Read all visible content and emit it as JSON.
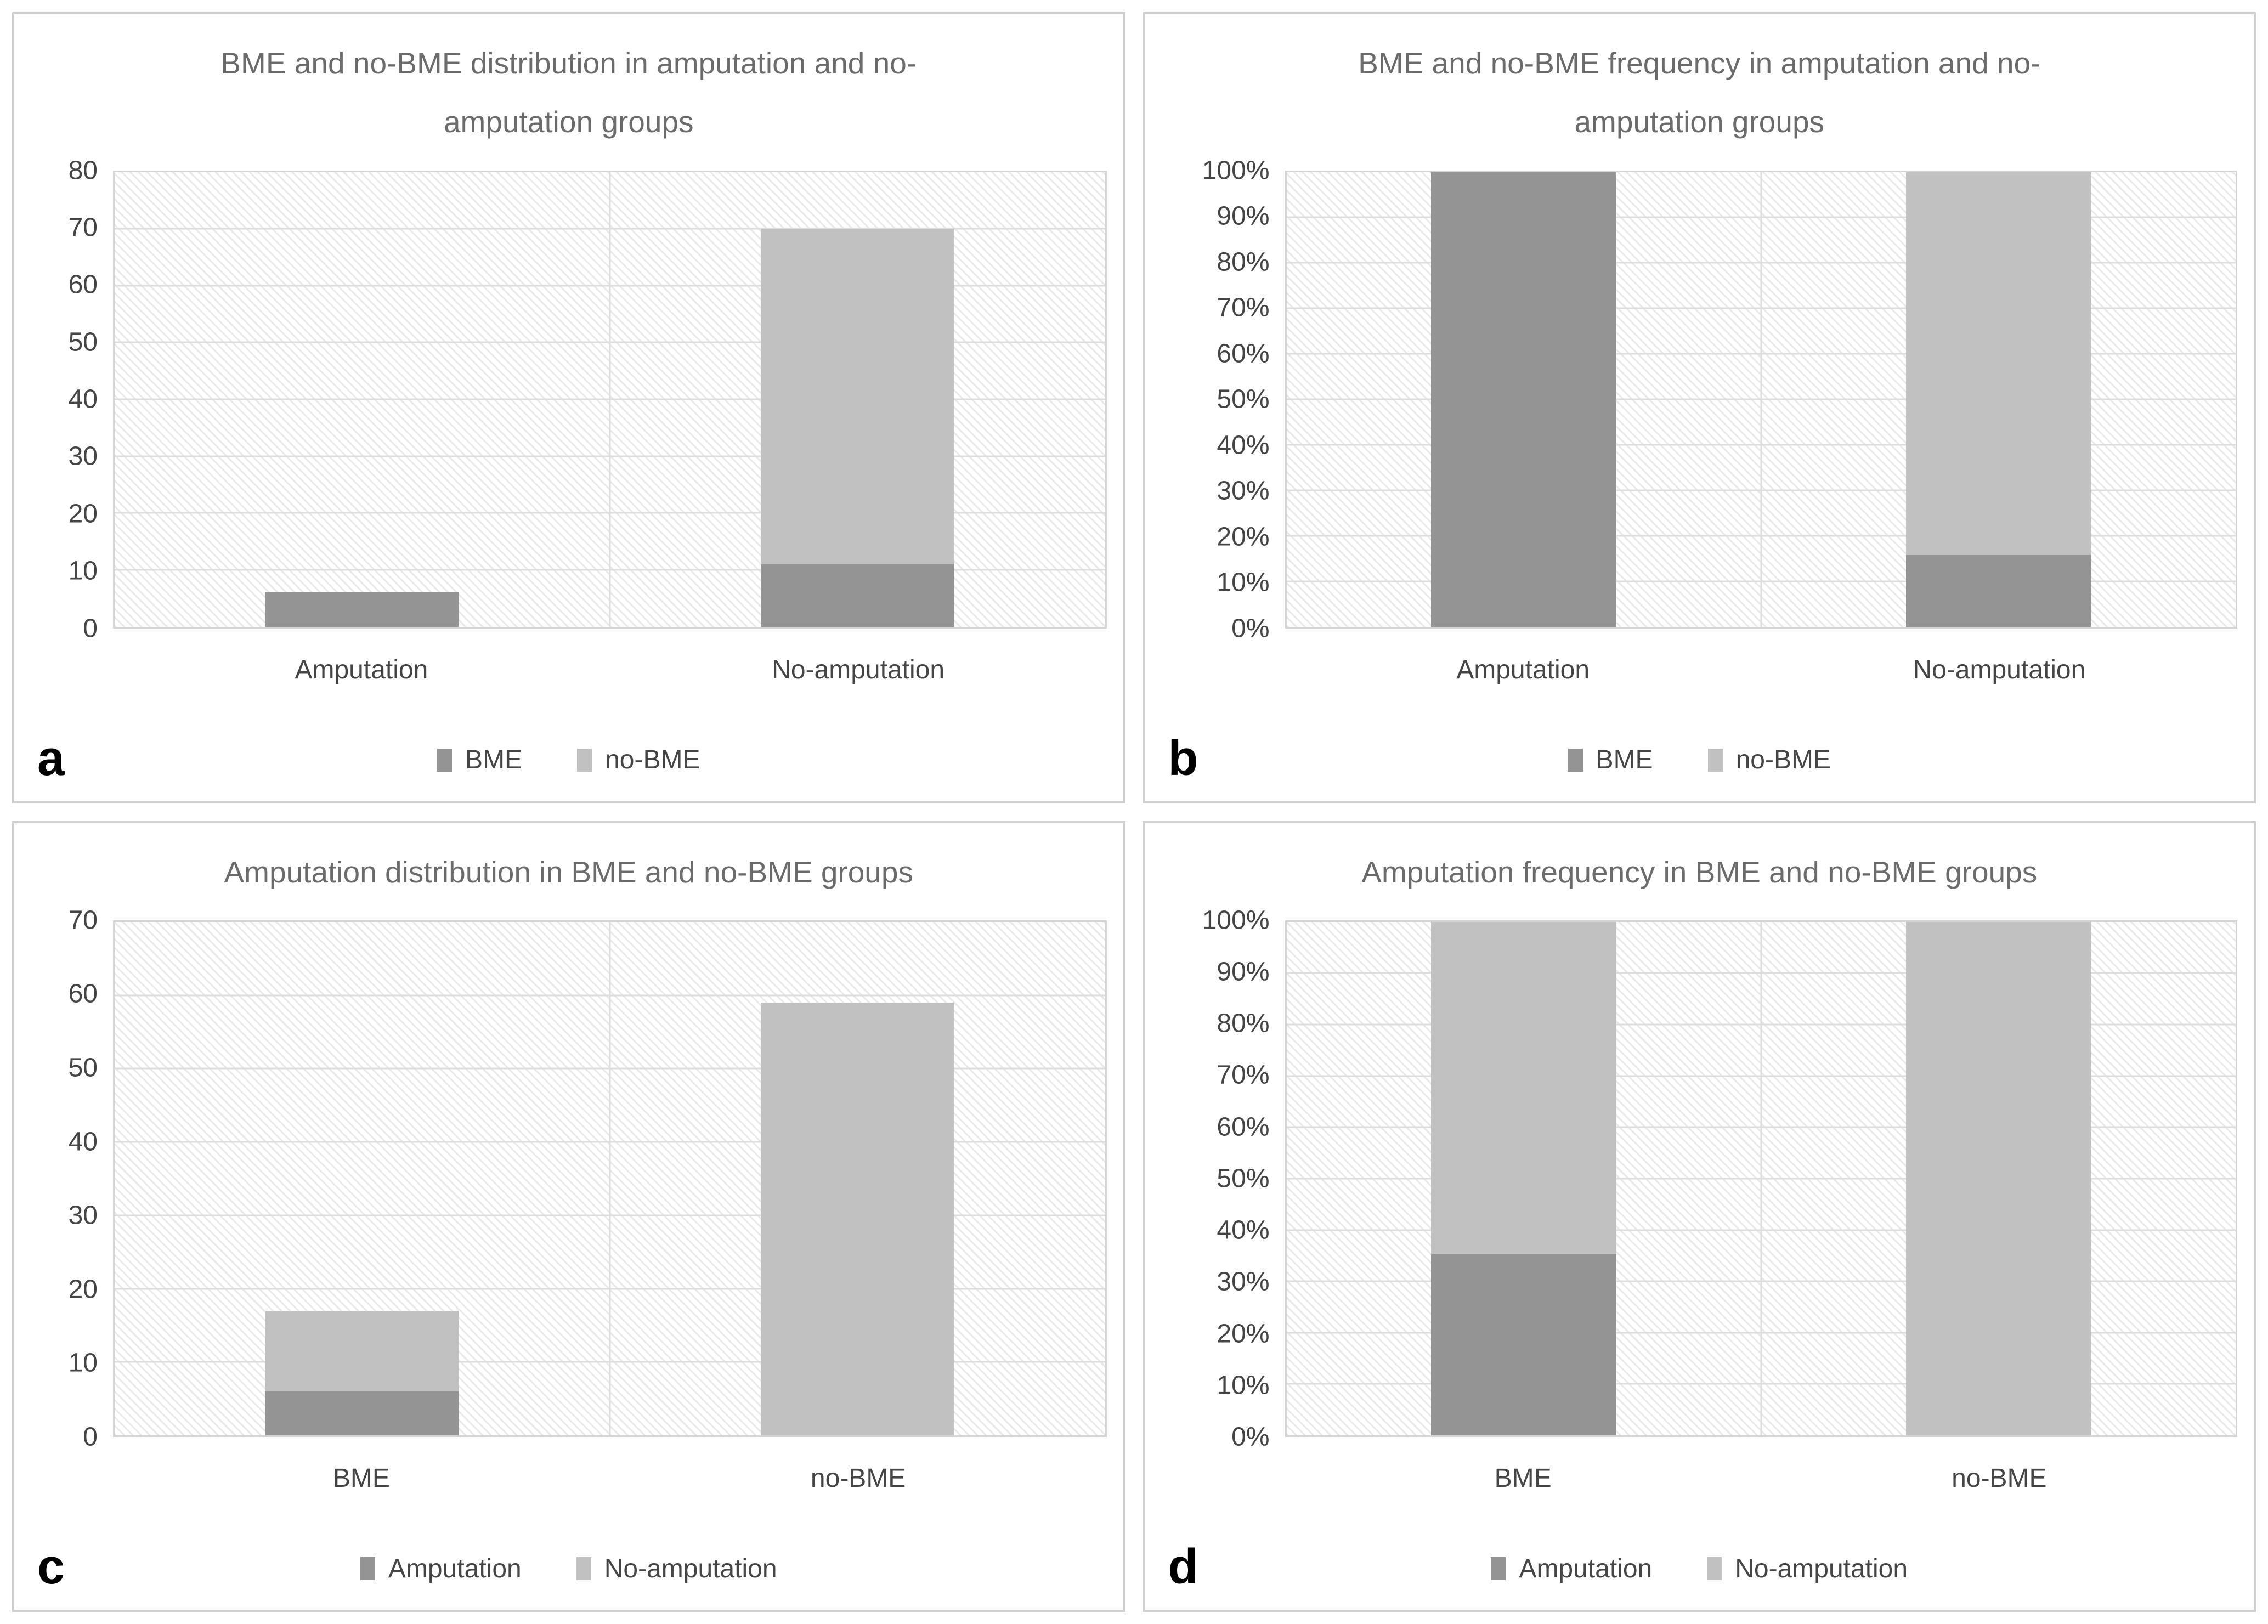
{
  "figure": {
    "background_color": "#ffffff",
    "panel_border_color": "#cfcfcf",
    "series_dark_color": "#949494",
    "series_light_color": "#c1c1c1",
    "title_color": "#6b6b6b",
    "axis_text_color": "#454545"
  },
  "chart_data": [
    {
      "panel": "a",
      "type": "bar",
      "subtype": "stacked",
      "title": "BME and no-BME distribution in amputation and no-amputation groups",
      "categories": [
        "Amputation",
        "No-amputation"
      ],
      "series": [
        {
          "name": "BME",
          "color": "#949494",
          "values": [
            6,
            11
          ]
        },
        {
          "name": "no-BME",
          "color": "#c1c1c1",
          "values": [
            0,
            59
          ]
        }
      ],
      "ylim": [
        0,
        80
      ],
      "yticks": [
        "80",
        "70",
        "60",
        "50",
        "40",
        "30",
        "20",
        "10",
        "0"
      ],
      "xlabel": "",
      "ylabel": "",
      "grid": true,
      "legend_position": "bottom"
    },
    {
      "panel": "b",
      "type": "bar",
      "subtype": "stacked-100",
      "title": "BME and no-BME frequency in amputation and no-amputation groups",
      "categories": [
        "Amputation",
        "No-amputation"
      ],
      "series": [
        {
          "name": "BME",
          "color": "#949494",
          "values": [
            100,
            15.7
          ]
        },
        {
          "name": "no-BME",
          "color": "#c1c1c1",
          "values": [
            0,
            84.3
          ]
        }
      ],
      "ylim": [
        0,
        100
      ],
      "yticks": [
        "100%",
        "90%",
        "80%",
        "70%",
        "60%",
        "50%",
        "40%",
        "30%",
        "20%",
        "10%",
        "0%"
      ],
      "xlabel": "",
      "ylabel": "",
      "grid": true,
      "legend_position": "bottom"
    },
    {
      "panel": "c",
      "type": "bar",
      "subtype": "stacked",
      "title": "Amputation distribution in BME and no-BME groups",
      "categories": [
        "BME",
        "no-BME"
      ],
      "series": [
        {
          "name": "Amputation",
          "color": "#949494",
          "values": [
            6,
            0
          ]
        },
        {
          "name": "No-amputation",
          "color": "#c1c1c1",
          "values": [
            11,
            59
          ]
        }
      ],
      "ylim": [
        0,
        70
      ],
      "yticks": [
        "70",
        "60",
        "50",
        "40",
        "30",
        "20",
        "10",
        "0"
      ],
      "xlabel": "",
      "ylabel": "",
      "grid": true,
      "legend_position": "bottom"
    },
    {
      "panel": "d",
      "type": "bar",
      "subtype": "stacked-100",
      "title": "Amputation frequency in BME and no-BME groups",
      "categories": [
        "BME",
        "no-BME"
      ],
      "series": [
        {
          "name": "Amputation",
          "color": "#949494",
          "values": [
            35.3,
            0
          ]
        },
        {
          "name": "No-amputation",
          "color": "#c1c1c1",
          "values": [
            64.7,
            100
          ]
        }
      ],
      "ylim": [
        0,
        100
      ],
      "yticks": [
        "100%",
        "90%",
        "80%",
        "70%",
        "60%",
        "50%",
        "40%",
        "30%",
        "20%",
        "10%",
        "0%"
      ],
      "xlabel": "",
      "ylabel": "",
      "grid": true,
      "legend_position": "bottom"
    }
  ]
}
